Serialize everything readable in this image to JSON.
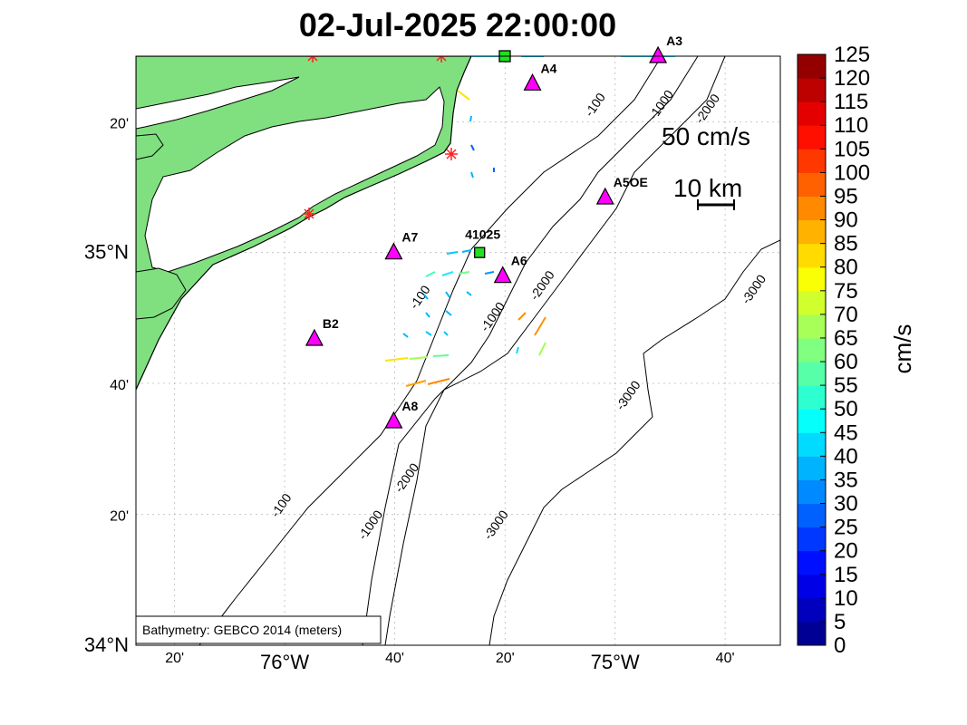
{
  "title": "02-Jul-2025 22:00:00",
  "axes": {
    "x_ticks": [
      {
        "lon": -76.333,
        "label": "20'",
        "major": false
      },
      {
        "lon": -76.0,
        "label": "76°W",
        "major": true
      },
      {
        "lon": -75.667,
        "label": "40'",
        "major": false
      },
      {
        "lon": -75.333,
        "label": "20'",
        "major": false
      },
      {
        "lon": -75.0,
        "label": "75°W",
        "major": true
      },
      {
        "lon": -74.667,
        "label": "40'",
        "major": false
      }
    ],
    "y_ticks": [
      {
        "lat": 34.0,
        "label": "34°N",
        "major": true
      },
      {
        "lat": 34.333,
        "label": "20'",
        "major": false
      },
      {
        "lat": 34.667,
        "label": "40'",
        "major": false
      },
      {
        "lat": 35.0,
        "label": "35°N",
        "major": true
      },
      {
        "lat": 35.333,
        "label": "20'",
        "major": false
      }
    ],
    "lon_range": [
      -76.45,
      -74.5
    ],
    "lat_range": [
      34.0,
      35.5
    ]
  },
  "stations": [
    {
      "name": "A4",
      "lon": -75.25,
      "lat": 35.43
    },
    {
      "name": "A5OE",
      "lon": -75.03,
      "lat": 35.14
    },
    {
      "name": "A7",
      "lon": -75.67,
      "lat": 35.0
    },
    {
      "name": "A6",
      "lon": -75.34,
      "lat": 34.94
    },
    {
      "name": "B2",
      "lon": -75.91,
      "lat": 34.78
    },
    {
      "name": "A8",
      "lon": -75.67,
      "lat": 34.57
    },
    {
      "name": "A3",
      "lon": -74.87,
      "lat": 35.5
    }
  ],
  "buoy": {
    "name": "41025",
    "lon": -75.41,
    "lat": 35.0
  },
  "bathymetry_credit": "Bathymetry: GEBCO 2014 (meters)",
  "contour_labels": [
    {
      "text": "-100",
      "lon": -75.05,
      "lat": 35.37
    },
    {
      "text": "-1000",
      "lon": -74.85,
      "lat": 35.37
    },
    {
      "text": "-2000",
      "lon": -74.71,
      "lat": 35.36
    },
    {
      "text": "-100",
      "lon": -75.58,
      "lat": 34.88
    },
    {
      "text": "-1000",
      "lon": -75.36,
      "lat": 34.83
    },
    {
      "text": "-2000",
      "lon": -75.21,
      "lat": 34.91
    },
    {
      "text": "-3000",
      "lon": -74.57,
      "lat": 34.9
    },
    {
      "text": "-3000",
      "lon": -74.95,
      "lat": 34.63
    },
    {
      "text": "-100",
      "lon": -76.0,
      "lat": 34.35
    },
    {
      "text": "-1000",
      "lon": -75.73,
      "lat": 34.3
    },
    {
      "text": "-2000",
      "lon": -75.62,
      "lat": 34.42
    },
    {
      "text": "-3000",
      "lon": -75.35,
      "lat": 34.3
    }
  ],
  "scale": {
    "velocity_label": "50 cm/s",
    "distance_label": "10 km"
  },
  "colorbar": {
    "units": "cm/s",
    "min": 0,
    "max": 125,
    "tick_labels": [
      "0",
      "5",
      "10",
      "15",
      "20",
      "25",
      "30",
      "35",
      "40",
      "45",
      "50",
      "55",
      "60",
      "65",
      "70",
      "75",
      "80",
      "85",
      "90",
      "95",
      "100",
      "105",
      "110",
      "115",
      "120",
      "125"
    ]
  }
}
